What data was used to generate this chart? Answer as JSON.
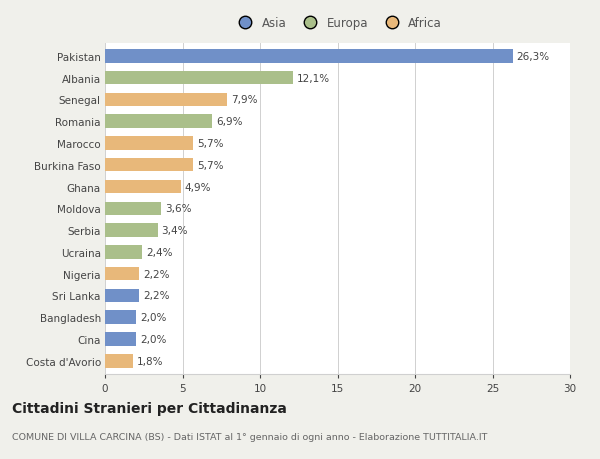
{
  "countries": [
    "Pakistan",
    "Albania",
    "Senegal",
    "Romania",
    "Marocco",
    "Burkina Faso",
    "Ghana",
    "Moldova",
    "Serbia",
    "Ucraina",
    "Nigeria",
    "Sri Lanka",
    "Bangladesh",
    "Cina",
    "Costa d'Avorio"
  ],
  "values": [
    26.3,
    12.1,
    7.9,
    6.9,
    5.7,
    5.7,
    4.9,
    3.6,
    3.4,
    2.4,
    2.2,
    2.2,
    2.0,
    2.0,
    1.8
  ],
  "labels": [
    "26,3%",
    "12,1%",
    "7,9%",
    "6,9%",
    "5,7%",
    "5,7%",
    "4,9%",
    "3,6%",
    "3,4%",
    "2,4%",
    "2,2%",
    "2,2%",
    "2,0%",
    "2,0%",
    "1,8%"
  ],
  "continents": [
    "Asia",
    "Europa",
    "Africa",
    "Europa",
    "Africa",
    "Africa",
    "Africa",
    "Europa",
    "Europa",
    "Europa",
    "Africa",
    "Asia",
    "Asia",
    "Asia",
    "Africa"
  ],
  "colors": {
    "Asia": "#7090c8",
    "Europa": "#aabf8a",
    "Africa": "#e8b87a"
  },
  "legend_order": [
    "Asia",
    "Europa",
    "Africa"
  ],
  "title": "Cittadini Stranieri per Cittadinanza",
  "subtitle": "COMUNE DI VILLA CARCINA (BS) - Dati ISTAT al 1° gennaio di ogni anno - Elaborazione TUTTITALIA.IT",
  "xlim": [
    0,
    30
  ],
  "xticks": [
    0,
    5,
    10,
    15,
    20,
    25,
    30
  ],
  "background_color": "#f0f0eb",
  "bar_background": "#ffffff",
  "grid_color": "#d0d0d0",
  "label_fontsize": 7.5,
  "tick_fontsize": 7.5,
  "title_fontsize": 10,
  "subtitle_fontsize": 6.8,
  "bar_height": 0.62
}
